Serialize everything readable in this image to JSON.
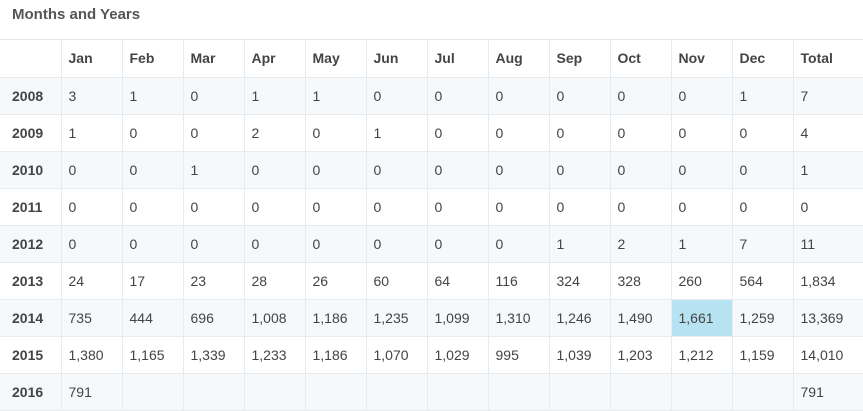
{
  "title": "Months and Years",
  "columns": [
    "",
    "Jan",
    "Feb",
    "Mar",
    "Apr",
    "May",
    "Jun",
    "Jul",
    "Aug",
    "Sep",
    "Oct",
    "Nov",
    "Dec",
    "Total"
  ],
  "rows": [
    {
      "year": "2008",
      "cells": [
        "3",
        "1",
        "0",
        "1",
        "1",
        "0",
        "0",
        "0",
        "0",
        "0",
        "0",
        "1"
      ],
      "total": "7"
    },
    {
      "year": "2009",
      "cells": [
        "1",
        "0",
        "0",
        "2",
        "0",
        "1",
        "0",
        "0",
        "0",
        "0",
        "0",
        "0"
      ],
      "total": "4"
    },
    {
      "year": "2010",
      "cells": [
        "0",
        "0",
        "1",
        "0",
        "0",
        "0",
        "0",
        "0",
        "0",
        "0",
        "0",
        "0"
      ],
      "total": "1"
    },
    {
      "year": "2011",
      "cells": [
        "0",
        "0",
        "0",
        "0",
        "0",
        "0",
        "0",
        "0",
        "0",
        "0",
        "0",
        "0"
      ],
      "total": "0"
    },
    {
      "year": "2012",
      "cells": [
        "0",
        "0",
        "0",
        "0",
        "0",
        "0",
        "0",
        "0",
        "1",
        "2",
        "1",
        "7"
      ],
      "total": "11"
    },
    {
      "year": "2013",
      "cells": [
        "24",
        "17",
        "23",
        "28",
        "26",
        "60",
        "64",
        "116",
        "324",
        "328",
        "260",
        "564"
      ],
      "total": "1,834"
    },
    {
      "year": "2014",
      "cells": [
        "735",
        "444",
        "696",
        "1,008",
        "1,186",
        "1,235",
        "1,099",
        "1,310",
        "1,246",
        "1,490",
        "1,661",
        "1,259"
      ],
      "total": "13,369"
    },
    {
      "year": "2015",
      "cells": [
        "1,380",
        "1,165",
        "1,339",
        "1,233",
        "1,186",
        "1,070",
        "1,029",
        "995",
        "1,039",
        "1,203",
        "1,212",
        "1,159"
      ],
      "total": "14,010"
    },
    {
      "year": "2016",
      "cells": [
        "791",
        "",
        "",
        "",
        "",
        "",
        "",
        "",
        "",
        "",
        "",
        ""
      ],
      "total": "791"
    }
  ],
  "highlight": {
    "row": 6,
    "col": 10,
    "color": "#b7e2f1"
  }
}
